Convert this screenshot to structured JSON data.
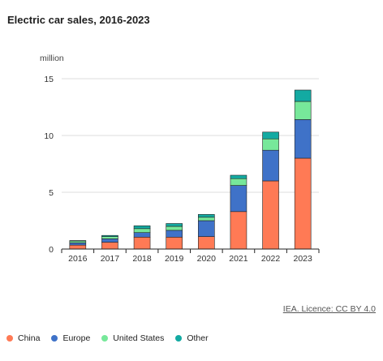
{
  "title": "Electric car sales, 2016-2023",
  "unit_label": "million",
  "source_text": "IEA. Licence: CC BY 4.0",
  "colors": {
    "China": "#ff7a55",
    "Europe": "#3f72c8",
    "United States": "#77e89a",
    "Other": "#13aaa2"
  },
  "chart_data": {
    "type": "bar",
    "stacked": true,
    "title": "Electric car sales, 2016-2023",
    "ylabel": "million",
    "ylim": [
      0,
      15
    ],
    "yticks": [
      0,
      5,
      10,
      15
    ],
    "grid": true,
    "legend_position": "bottom",
    "categories": [
      "2016",
      "2017",
      "2018",
      "2019",
      "2020",
      "2021",
      "2022",
      "2023"
    ],
    "series": [
      {
        "name": "China",
        "values": [
          0.35,
          0.6,
          1.05,
          1.05,
          1.1,
          3.3,
          6.0,
          8.0
        ]
      },
      {
        "name": "Europe",
        "values": [
          0.2,
          0.3,
          0.4,
          0.6,
          1.4,
          2.3,
          2.7,
          3.4
        ]
      },
      {
        "name": "United States",
        "values": [
          0.15,
          0.2,
          0.35,
          0.35,
          0.3,
          0.6,
          1.0,
          1.6
        ]
      },
      {
        "name": "Other",
        "values": [
          0.05,
          0.1,
          0.25,
          0.25,
          0.25,
          0.3,
          0.6,
          1.0
        ]
      }
    ]
  }
}
